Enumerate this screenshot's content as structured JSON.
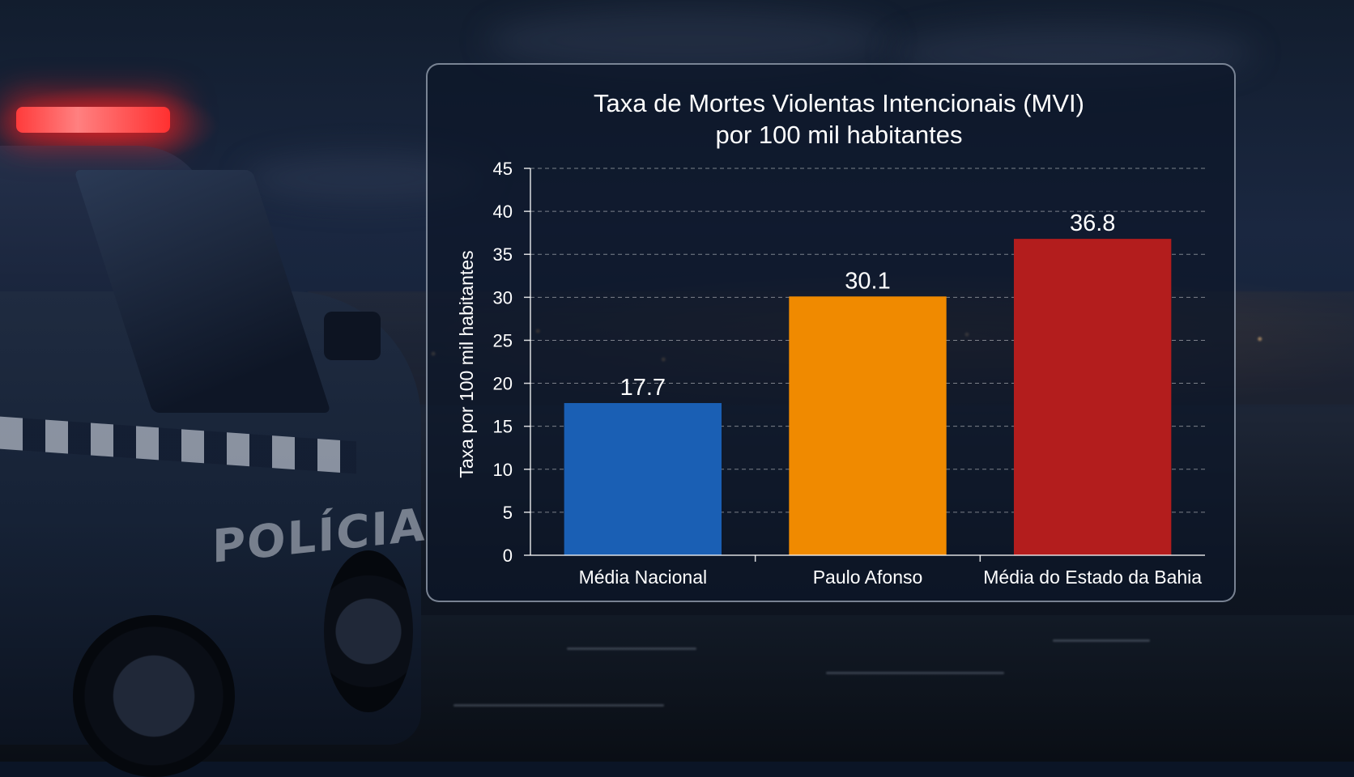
{
  "chart_data": {
    "type": "bar",
    "title_lines": [
      "Taxa de Mortes Violentas Intencionais (MVI)",
      "por 100 mil habitantes"
    ],
    "ylabel": "Taxa por 100 mil habitantes",
    "xlabel": "",
    "categories": [
      "Média Nacional",
      "Paulo Afonso",
      "Média do Estado da Bahia"
    ],
    "values": [
      17.7,
      30.1,
      36.8
    ],
    "data_labels": [
      "17.7",
      "30.1",
      "36.8"
    ],
    "colors": [
      "#1a5fb4",
      "#f08a00",
      "#b31d1d"
    ],
    "ylim": [
      0,
      45
    ],
    "yticks": [
      0,
      5,
      10,
      15,
      20,
      25,
      30,
      35,
      40,
      45
    ],
    "grid": true,
    "legend": "none"
  },
  "background": {
    "car_text": "POLÍCIA",
    "accent_colors": {
      "siren": "#ff2d2d",
      "panel_border": "#d2dceb"
    }
  }
}
